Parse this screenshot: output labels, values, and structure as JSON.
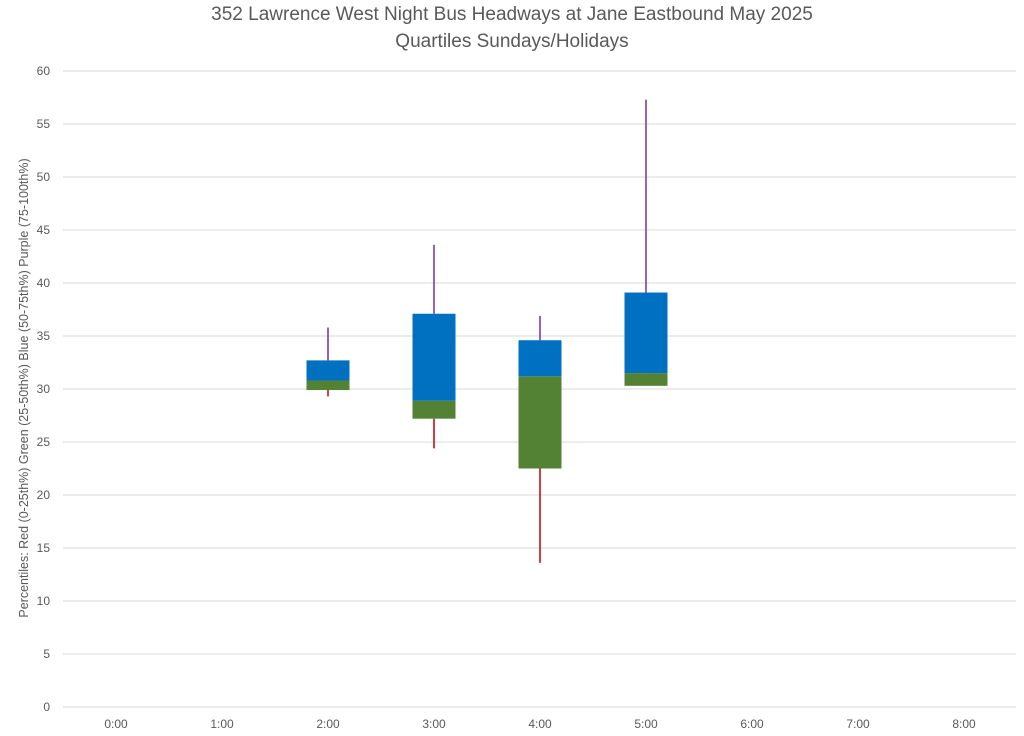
{
  "chart_data": {
    "type": "box",
    "title": "352 Lawrence West Night Bus Headways at Jane Eastbound May 2025",
    "subtitle": "Quartiles Sundays/Holidays",
    "ylabel": "Percentiles:  Red (0-25th%)  Green (25-50th%)  Blue (50-75th%)  Purple (75-100th%)",
    "xlabel": "",
    "ylim": [
      0,
      60
    ],
    "ytick_step": 5,
    "y_ticks": [
      "0",
      "5",
      "10",
      "15",
      "20",
      "25",
      "30",
      "35",
      "40",
      "45",
      "50",
      "55",
      "60"
    ],
    "categories": [
      "0:00",
      "1:00",
      "2:00",
      "3:00",
      "4:00",
      "5:00",
      "6:00",
      "7:00",
      "8:00"
    ],
    "grid": true,
    "legend": "none",
    "colors": {
      "low_whisker": "#c00000",
      "q1_median": "#548235",
      "median_q3": "#0070c0",
      "high_whisker": "#7030a0",
      "grid": "#d9d9d9",
      "text": "#595959"
    },
    "boxes": [
      {
        "x": "2:00",
        "min": 29.3,
        "q1": 29.9,
        "median": 30.8,
        "q3": 32.7,
        "max": 35.8
      },
      {
        "x": "3:00",
        "min": 24.4,
        "q1": 27.2,
        "median": 28.9,
        "q3": 37.1,
        "max": 43.6
      },
      {
        "x": "4:00",
        "min": 13.6,
        "q1": 22.5,
        "median": 31.2,
        "q3": 34.6,
        "max": 36.9
      },
      {
        "x": "5:00",
        "min": 30.3,
        "q1": 30.3,
        "median": 31.5,
        "q3": 39.1,
        "max": 57.3
      }
    ]
  }
}
